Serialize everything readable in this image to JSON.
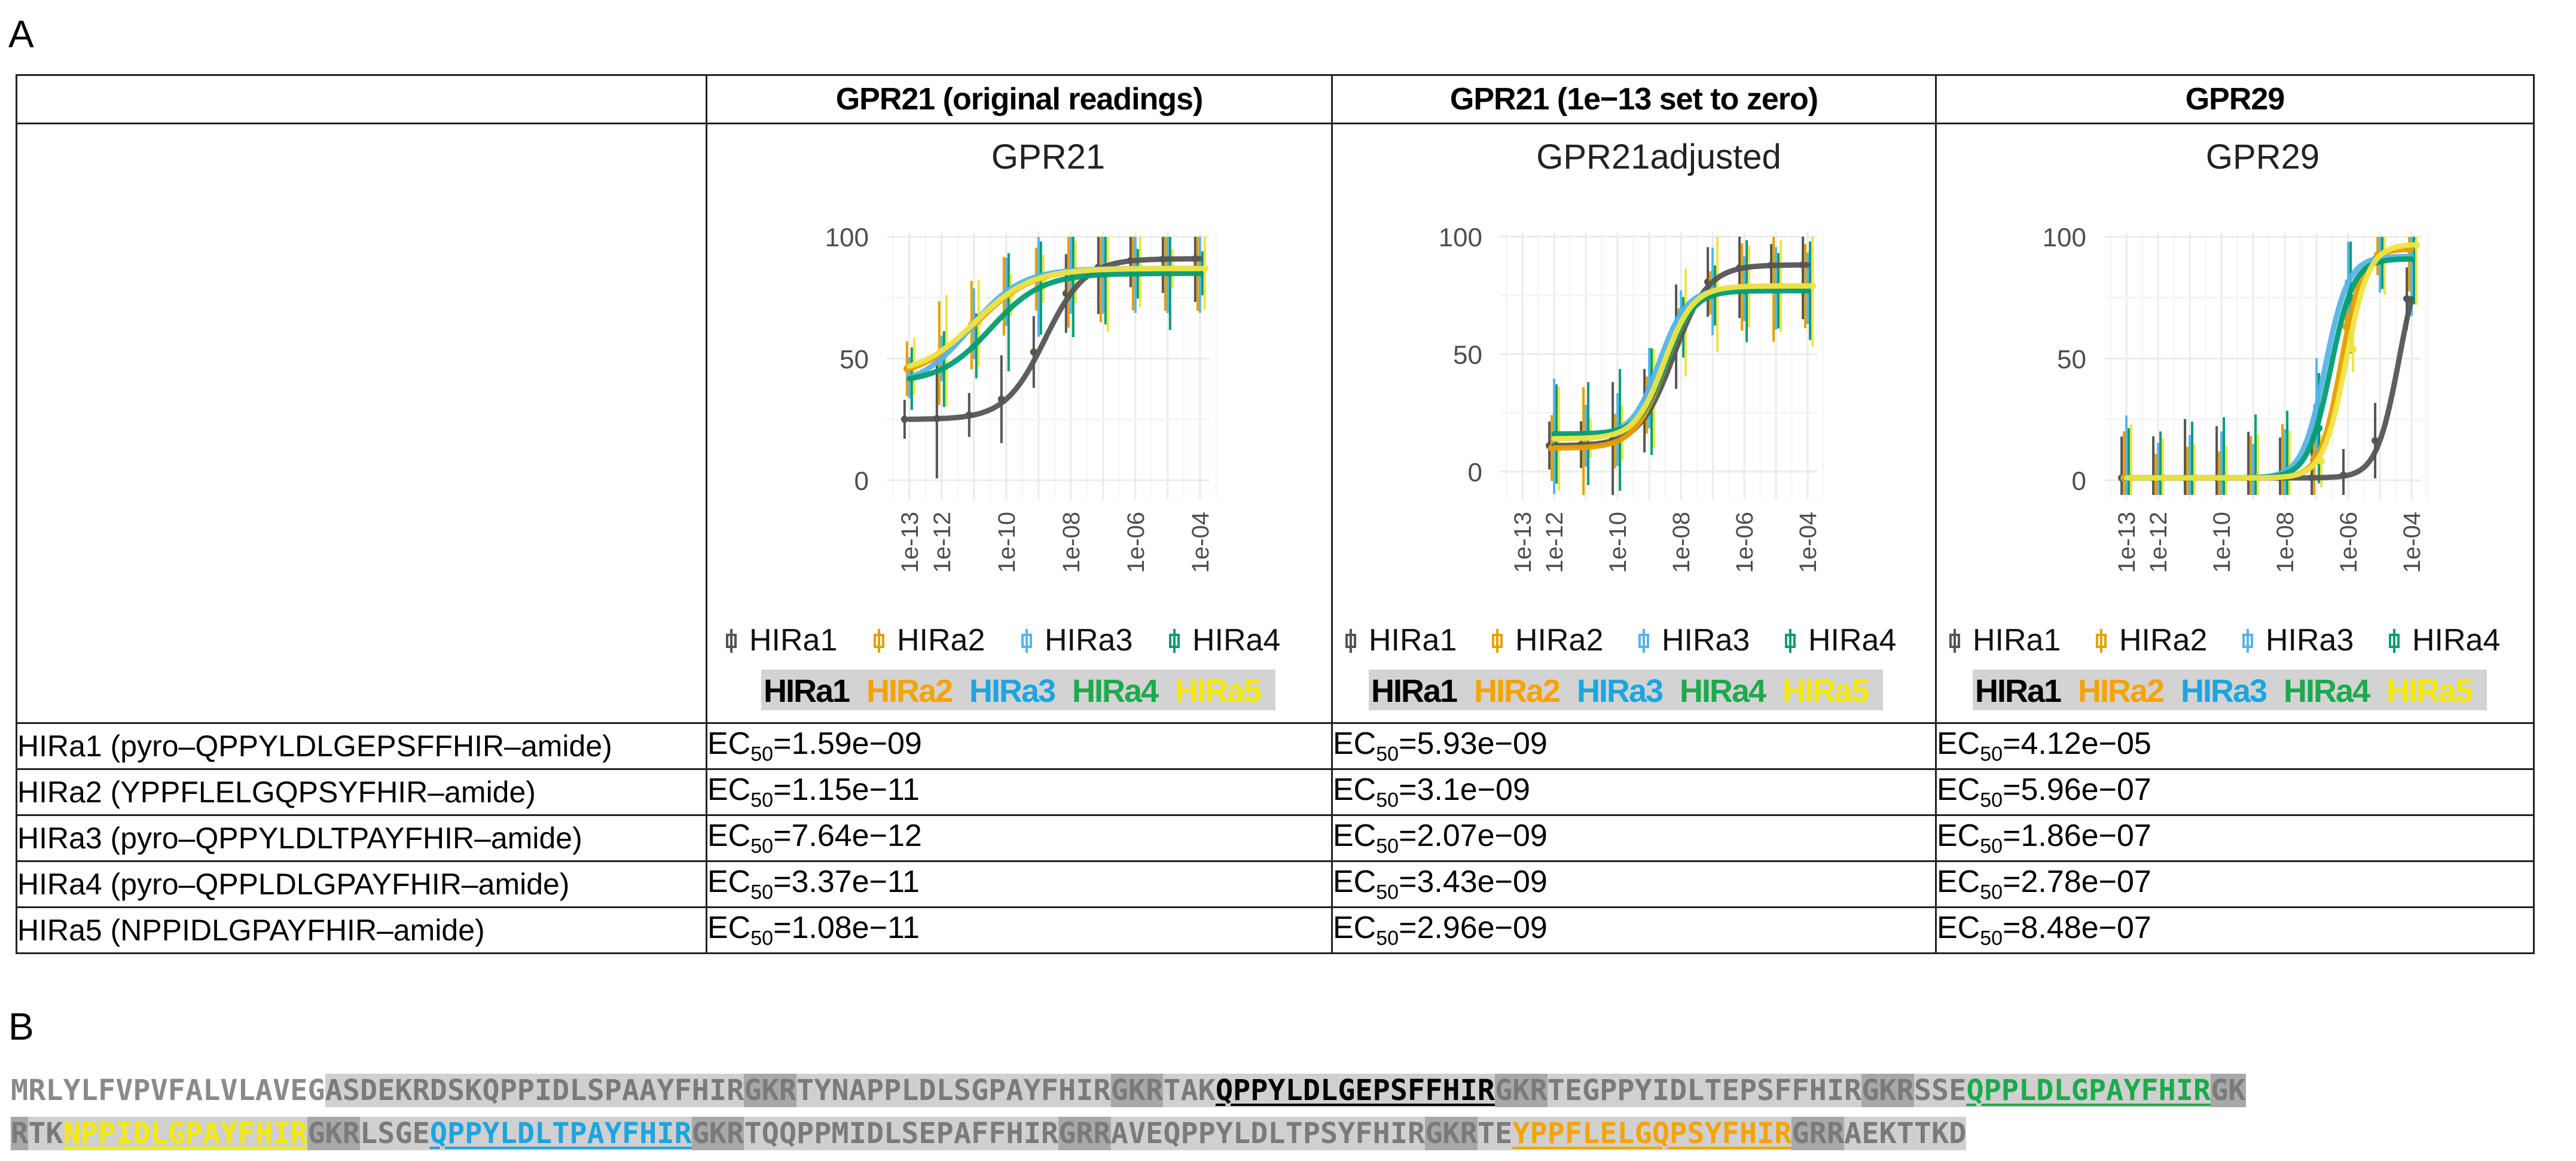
{
  "panel_labels": {
    "a": "A",
    "b": "B"
  },
  "table": {
    "columns": [
      "GPR21 (original readings)",
      "GPR21 (1e−13 set to zero)",
      "GPR29"
    ],
    "rows": [
      {
        "label": "HIRa1 (pyro–QPPYLDLGEPSFFHIR–amide)",
        "ec50": [
          "=1.59e−09",
          "=5.93e−09",
          "=4.12e−05"
        ]
      },
      {
        "label": "HIRa2 (YPPFLELGQPSYFHIR–amide)",
        "ec50": [
          "=1.15e−11",
          "=3.1e−09",
          "=5.96e−07"
        ]
      },
      {
        "label": "HIRa3 (pyro–QPPYLDLTPAYFHIR–amide)",
        "ec50": [
          "=7.64e−12",
          "=2.07e−09",
          "=1.86e−07"
        ]
      },
      {
        "label": "HIRa4 (pyro–QPPLDLGPAYFHIR–amide)",
        "ec50": [
          "=3.37e−11",
          "=3.43e−09",
          "=2.78e−07"
        ]
      },
      {
        "label": "HIRa5 (NPPIDLGPAYFHIR–amide)",
        "ec50": [
          "=1.08e−11",
          "=2.96e−09",
          "=8.48e−07"
        ]
      }
    ],
    "ec_prefix": "EC",
    "ec_sub": "50"
  },
  "chart_data": [
    {
      "type": "line",
      "title": "GPR21",
      "x_scale": "log10",
      "x_tick_labels": [
        "1e-13",
        "1e-12",
        "1e-10",
        "1e-08",
        "1e-06",
        "1e-04"
      ],
      "y_tick_labels": [
        "0",
        "50",
        "100"
      ],
      "ylim": [
        -8,
        102
      ],
      "doses": [
        1e-13,
        1e-12,
        1e-11,
        1e-10,
        1e-09,
        1e-08,
        1e-07,
        1e-06,
        1e-05,
        0.0001
      ],
      "series": [
        {
          "name": "HIRa1",
          "bottom": 25,
          "top": 91,
          "ec50": 1.59e-09,
          "hill": 0.7
        },
        {
          "name": "HIRa2",
          "bottom": 42,
          "top": 87,
          "ec50": 1.15e-11,
          "hill": 0.5
        },
        {
          "name": "HIRa3",
          "bottom": 38,
          "top": 87,
          "ec50": 7.64e-12,
          "hill": 0.55
        },
        {
          "name": "HIRa4",
          "bottom": 40,
          "top": 85,
          "ec50": 3.37e-11,
          "hill": 0.55
        },
        {
          "name": "HIRa5",
          "bottom": 43,
          "top": 87,
          "ec50": 1.08e-11,
          "hill": 0.5
        }
      ]
    },
    {
      "type": "line",
      "title": "GPR21adjusted",
      "x_scale": "log10",
      "x_tick_labels": [
        "1e-13",
        "1e-12",
        "1e-10",
        "1e-08",
        "1e-06",
        "1e-04"
      ],
      "y_tick_labels": [
        "0",
        "50",
        "100"
      ],
      "ylim": [
        -12,
        102
      ],
      "doses": [
        1e-12,
        1e-11,
        1e-10,
        1e-09,
        1e-08,
        1e-07,
        1e-06,
        1e-05,
        0.0001
      ],
      "series": [
        {
          "name": "HIRa1",
          "bottom": 11,
          "top": 88,
          "ec50": 5.93e-09,
          "hill": 0.8
        },
        {
          "name": "HIRa2",
          "bottom": 10,
          "top": 79,
          "ec50": 3.1e-09,
          "hill": 0.9
        },
        {
          "name": "HIRa3",
          "bottom": 15,
          "top": 78,
          "ec50": 2.07e-09,
          "hill": 1.0
        },
        {
          "name": "HIRa4",
          "bottom": 16,
          "top": 77,
          "ec50": 3.43e-09,
          "hill": 1.0
        },
        {
          "name": "HIRa5",
          "bottom": 14,
          "top": 79,
          "ec50": 2.96e-09,
          "hill": 0.95
        }
      ]
    },
    {
      "type": "line",
      "title": "GPR29",
      "x_scale": "log10",
      "x_tick_labels": [
        "1e-13",
        "1e-12",
        "1e-10",
        "1e-08",
        "1e-06",
        "1e-04"
      ],
      "y_tick_labels": [
        "0",
        "50",
        "100"
      ],
      "ylim": [
        -8,
        102
      ],
      "doses": [
        1e-13,
        1e-12,
        1e-11,
        1e-10,
        1e-09,
        1e-08,
        1e-07,
        1e-06,
        1e-05,
        0.0001
      ],
      "series": [
        {
          "name": "HIRa1",
          "bottom": 1,
          "top": 100,
          "ec50": 4.12e-05,
          "hill": 1.2
        },
        {
          "name": "HIRa2",
          "bottom": 1,
          "top": 95,
          "ec50": 5.96e-07,
          "hill": 1.3
        },
        {
          "name": "HIRa3",
          "bottom": 1,
          "top": 92,
          "ec50": 1.86e-07,
          "hill": 1.2
        },
        {
          "name": "HIRa4",
          "bottom": 1,
          "top": 91,
          "ec50": 2.78e-07,
          "hill": 1.2
        },
        {
          "name": "HIRa5",
          "bottom": 1,
          "top": 97,
          "ec50": 8.48e-07,
          "hill": 1.2
        }
      ]
    }
  ],
  "legend": {
    "entries": [
      "HIRa1",
      "HIRa2",
      "HIRa3",
      "HIRa4"
    ],
    "labels": [
      "HIRa1",
      "HIRa2",
      "HIRa3",
      "HIRa4",
      "HIRa5"
    ]
  },
  "colors": {
    "HIRa1": "#555555",
    "HIRa2": "#E69F00",
    "HIRa3": "#56B4E9",
    "HIRa4": "#009E73",
    "HIRa5": "#F0E442",
    "label_HIRa1": "#000000",
    "label_HIRa2": "#F5A300",
    "label_HIRa3": "#1CA5E0",
    "label_HIRa4": "#1BAA4C",
    "label_HIRa5": "#F5EA00"
  },
  "sequence": {
    "lines": [
      [
        {
          "t": "MRLYLFVPVFALVLAVEG",
          "bg": 0,
          "c": "grey"
        },
        {
          "t": "ASDEKRDSKQPPIDLSPAAYFHIR",
          "bg": 1,
          "c": "grey"
        },
        {
          "t": "GKR",
          "bg": 2,
          "c": "grey"
        },
        {
          "t": "TYNAPPLDLSGPAYFHIR",
          "bg": 1,
          "c": "grey"
        },
        {
          "t": "GKR",
          "bg": 2,
          "c": "grey"
        },
        {
          "t": "TAK",
          "bg": 1,
          "c": "grey"
        },
        {
          "t": "QPPYLDLGEPSFFHIR",
          "bg": 1,
          "c": "HIRa1",
          "u": true
        },
        {
          "t": "GKR",
          "bg": 2,
          "c": "grey"
        },
        {
          "t": "TEGPPYIDLTEPSFFHIR",
          "bg": 1,
          "c": "grey"
        },
        {
          "t": "GKR",
          "bg": 2,
          "c": "grey"
        },
        {
          "t": "SSE",
          "bg": 1,
          "c": "grey"
        },
        {
          "t": "QPPLDLGPAYFHIR",
          "bg": 1,
          "c": "HIRa4",
          "u": true
        },
        {
          "t": "GK",
          "bg": 2,
          "c": "grey"
        }
      ],
      [
        {
          "t": "R",
          "bg": 2,
          "c": "grey"
        },
        {
          "t": "TK",
          "bg": 1,
          "c": "grey"
        },
        {
          "t": "NPPIDLGPAYFHIR",
          "bg": 1,
          "c": "HIRa5",
          "u": true
        },
        {
          "t": "GKR",
          "bg": 2,
          "c": "grey"
        },
        {
          "t": "LSGE",
          "bg": 1,
          "c": "grey"
        },
        {
          "t": "QPPYLDLTPAYFHIR",
          "bg": 1,
          "c": "HIRa3",
          "u": true
        },
        {
          "t": "GKR",
          "bg": 2,
          "c": "grey"
        },
        {
          "t": "TQQPPMIDLSEPAFFHIR",
          "bg": 1,
          "c": "grey"
        },
        {
          "t": "GRR",
          "bg": 2,
          "c": "grey"
        },
        {
          "t": "AVEQPPYLDLTPSYFHIR",
          "bg": 1,
          "c": "grey"
        },
        {
          "t": "GKR",
          "bg": 2,
          "c": "grey"
        },
        {
          "t": "TE",
          "bg": 1,
          "c": "grey"
        },
        {
          "t": "YPPFLELGQPSYFHIR",
          "bg": 1,
          "c": "HIRa2",
          "u": true
        },
        {
          "t": "GRR",
          "bg": 2,
          "c": "grey"
        },
        {
          "t": "AEKTTKD",
          "bg": 1,
          "c": "grey"
        }
      ]
    ]
  }
}
